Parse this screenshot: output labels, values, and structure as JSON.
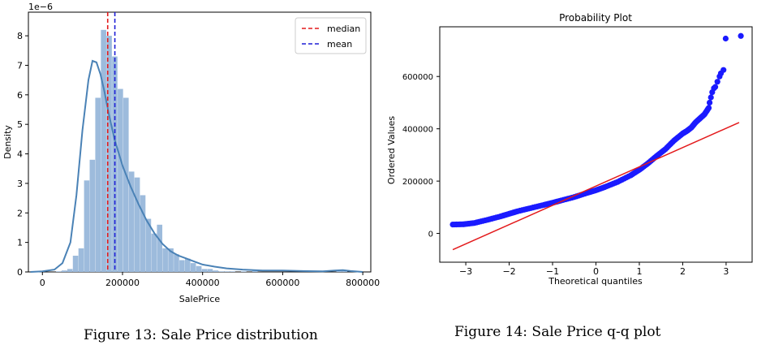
{
  "colors": {
    "hist_fill": "#9dbbdc",
    "kde_line": "#4a82b6",
    "median_line": "#e31a1c",
    "mean_line": "#1f1fd6",
    "qq_points": "#1a1aff",
    "qq_fit": "#e31a1c"
  },
  "captions": {
    "left": "Figure 13: Sale Price distribution",
    "right": "Figure 14: Sale Price q-q plot"
  },
  "chart_data": [
    {
      "type": "bar",
      "subtype": "histogram-with-kde",
      "title": "",
      "xlabel": "SalePrice",
      "ylabel": "Density",
      "scale_label": "1e−6",
      "xlim": [
        -35000,
        820000
      ],
      "ylim": [
        0,
        8.8
      ],
      "xticks": [
        0,
        200000,
        400000,
        600000,
        800000
      ],
      "xtick_labels": [
        "0",
        "200000",
        "400000",
        "600000",
        "800000"
      ],
      "yticks": [
        0,
        1,
        2,
        3,
        4,
        5,
        6,
        7,
        8
      ],
      "ytick_labels": [
        "0",
        "1",
        "2",
        "3",
        "4",
        "5",
        "6",
        "7",
        "8"
      ],
      "bin_width": 14000,
      "bins_start": 34000,
      "bin_values": [
        0.02,
        0.05,
        0.1,
        0.55,
        0.8,
        3.1,
        3.8,
        5.9,
        8.2,
        8.0,
        7.3,
        6.2,
        5.9,
        3.4,
        3.2,
        2.6,
        1.8,
        1.3,
        1.6,
        0.8,
        0.8,
        0.6,
        0.4,
        0.45,
        0.3,
        0.2,
        0.1,
        0.1,
        0.05,
        0.02,
        0.02,
        0.02,
        0.0,
        0.02,
        0.0,
        0.05,
        0.0,
        0.0,
        0.0,
        0.0,
        0.0,
        0.0,
        0.0,
        0.0,
        0.0,
        0.0,
        0.0,
        0.0,
        0.0,
        0.0,
        0.04,
        0.05
      ],
      "kde": {
        "x": [
          -30000,
          0,
          30000,
          50000,
          70000,
          85000,
          100000,
          115000,
          125000,
          135000,
          145000,
          155000,
          165000,
          180000,
          200000,
          220000,
          240000,
          260000,
          280000,
          300000,
          320000,
          340000,
          360000,
          380000,
          400000,
          430000,
          460000,
          500000,
          550000,
          600000,
          650000,
          700000,
          730000,
          750000,
          770000,
          800000
        ],
        "y": [
          0.0,
          0.02,
          0.08,
          0.3,
          1.0,
          2.6,
          4.8,
          6.5,
          7.15,
          7.1,
          6.7,
          6.1,
          5.4,
          4.5,
          3.6,
          2.9,
          2.3,
          1.75,
          1.3,
          0.95,
          0.7,
          0.55,
          0.45,
          0.35,
          0.25,
          0.18,
          0.12,
          0.08,
          0.05,
          0.05,
          0.03,
          0.02,
          0.05,
          0.06,
          0.03,
          0.0
        ]
      },
      "median": 163000,
      "mean": 180921,
      "legend": {
        "position": "top-right",
        "entries": [
          {
            "name": "median",
            "style": "dashed",
            "color": "#e31a1c"
          },
          {
            "name": "mean",
            "style": "dashed",
            "color": "#1f1fd6"
          }
        ]
      },
      "grid": false
    },
    {
      "type": "scatter",
      "subtype": "probability-plot",
      "title": "Probability Plot",
      "xlabel": "Theoretical quantiles",
      "ylabel": "Ordered Values",
      "xlim": [
        -3.6,
        3.6
      ],
      "ylim": [
        -110000,
        790000
      ],
      "xticks": [
        -3,
        -2,
        -1,
        0,
        1,
        2,
        3
      ],
      "xtick_labels": [
        "−3",
        "−2",
        "−1",
        "0",
        "1",
        "2",
        "3"
      ],
      "yticks": [
        0,
        200000,
        400000,
        600000
      ],
      "ytick_labels": [
        "0",
        "200000",
        "400000",
        "600000"
      ],
      "fit_line": {
        "x": [
          -3.3,
          3.3
        ],
        "y": [
          -62000,
          424000
        ]
      },
      "points_curve": {
        "x": [
          -3.3,
          -3.05,
          -2.8,
          -2.5,
          -2.2,
          -2.0,
          -1.8,
          -1.5,
          -1.2,
          -1.0,
          -0.8,
          -0.5,
          -0.2,
          0.0,
          0.2,
          0.5,
          0.8,
          1.0,
          1.2,
          1.4,
          1.6,
          1.8,
          2.0,
          2.1,
          2.2,
          2.3,
          2.4,
          2.5,
          2.6
        ],
        "y": [
          34000,
          35000,
          40000,
          52000,
          65000,
          75000,
          85000,
          97000,
          109000,
          117000,
          126000,
          139000,
          155000,
          165000,
          177000,
          197000,
          222000,
          243000,
          268000,
          296000,
          322000,
          355000,
          382000,
          392000,
          405000,
          425000,
          440000,
          455000,
          480000
        ]
      },
      "points_outliers": {
        "x": [
          2.62,
          2.65,
          2.68,
          2.72,
          2.75,
          2.8,
          2.85,
          2.88,
          2.94,
          2.99,
          3.34
        ],
        "y": [
          500000,
          520000,
          540000,
          555000,
          560000,
          580000,
          600000,
          612000,
          625000,
          745000,
          755000
        ]
      },
      "grid": false
    }
  ]
}
